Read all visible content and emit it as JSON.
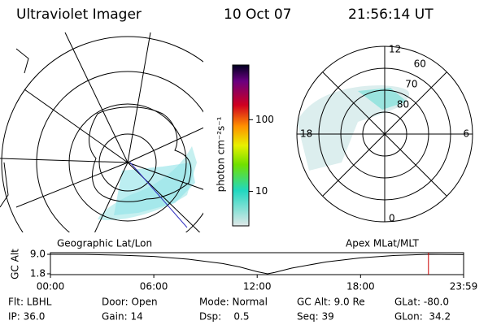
{
  "header": {
    "title": "Ultraviolet Imager",
    "date": "10 Oct 07",
    "time": "21:56:14 UT"
  },
  "geographic_map": {
    "label": "Geographic Lat/Lon"
  },
  "colorbar": {
    "label": "photon cm⁻²s⁻¹",
    "scale": "log",
    "lim": [
      3.3,
      580
    ],
    "ticks": [
      10,
      100
    ]
  },
  "polar_plot": {
    "label": "Apex MLat/MLT",
    "lat_lim": [
      50,
      90
    ],
    "lat_ticks": [
      60,
      70,
      80
    ],
    "mlt_ticks": [
      12,
      18,
      6,
      0
    ]
  },
  "altitude_plot": {
    "ylabel": "GC Alt",
    "ylim": [
      1.8,
      9.0
    ],
    "yticks": [
      {
        "value": 9.0,
        "label": "9.0"
      },
      {
        "value": 1.8,
        "label": "1.8"
      }
    ],
    "xlim": [
      0,
      23.98
    ],
    "xticks": [
      {
        "value": 0,
        "label": "00:00"
      },
      {
        "value": 6,
        "label": "06:00"
      },
      {
        "value": 12,
        "label": "12:00"
      },
      {
        "value": 18,
        "label": "18:00"
      },
      {
        "value": 23.98,
        "label": "23:59"
      }
    ],
    "hours": [
      0,
      2,
      4,
      6,
      8,
      10,
      11,
      12,
      12.6,
      13,
      14,
      16,
      18,
      20,
      22,
      23.98
    ],
    "altitudes": [
      9.0,
      8.95,
      8.7,
      8.2,
      7.2,
      5.6,
      4.3,
      2.6,
      1.8,
      2.3,
      3.9,
      6.2,
      7.7,
      8.6,
      9.0,
      8.9
    ],
    "line_color": "#000000",
    "marker_hour": 21.94,
    "marker_color": "#cc0000"
  },
  "footer": {
    "rows": [
      [
        "Flt: LBHL",
        "Door: Open",
        "Mode: Normal",
        "GC Alt: 9.0 Re",
        "GLat: -80.0"
      ],
      [
        "IP: 36.0",
        "Gain: 14",
        "Dsp:    0.5",
        "Seq: 39",
        "GLon:  34.2"
      ]
    ]
  }
}
